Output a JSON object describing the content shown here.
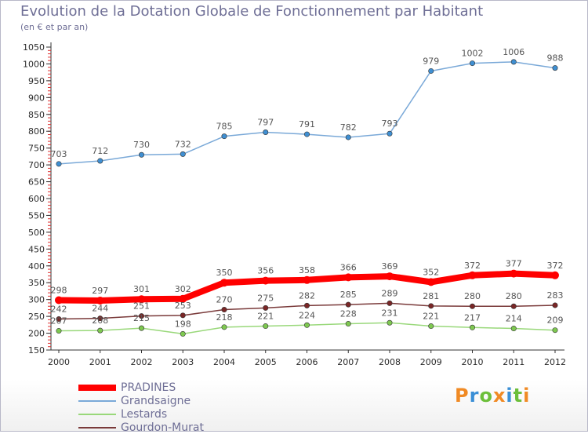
{
  "header": {
    "title": "Evolution de la Dotation Globale de Fonctionnement par Habitant",
    "subtitle": "(en € et par an)"
  },
  "logo": {
    "text": "Proxiti",
    "colors": [
      "#f08a24",
      "#3a8fd6",
      "#6cbf3a",
      "#f08a24",
      "#3a8fd6",
      "#6cbf3a",
      "#f08a24"
    ]
  },
  "chart_data": {
    "type": "line",
    "title": "Evolution de la Dotation Globale de Fonctionnement par Habitant",
    "subtitle": "(en € et par an)",
    "xlabel": "",
    "ylabel": "",
    "x": [
      "2000",
      "2001",
      "2002",
      "2003",
      "2004",
      "2005",
      "2006",
      "2007",
      "2008",
      "2009",
      "2010",
      "2011",
      "2012"
    ],
    "ylim": [
      150,
      1050
    ],
    "yticks": [
      150,
      200,
      250,
      300,
      350,
      400,
      450,
      500,
      550,
      600,
      650,
      700,
      750,
      800,
      850,
      900,
      950,
      1000,
      1050
    ],
    "grid": false,
    "legend": "bottom-left",
    "series": [
      {
        "name": "PRADINES",
        "color": "#ff0000",
        "values": [
          298,
          297,
          301,
          302,
          350,
          356,
          358,
          366,
          369,
          352,
          372,
          377,
          372
        ]
      },
      {
        "name": "Grandsaigne",
        "color": "#7aa9d8",
        "values": [
          703,
          712,
          730,
          732,
          785,
          797,
          791,
          782,
          793,
          979,
          1002,
          1006,
          988
        ]
      },
      {
        "name": "Lestards",
        "color": "#99d87a",
        "values": [
          207,
          208,
          215,
          198,
          218,
          221,
          224,
          228,
          231,
          221,
          217,
          214,
          209
        ]
      },
      {
        "name": "Gourdon-Murat",
        "color": "#7a3a3a",
        "values": [
          242,
          244,
          251,
          253,
          270,
          275,
          282,
          285,
          289,
          281,
          280,
          280,
          283
        ]
      }
    ]
  }
}
